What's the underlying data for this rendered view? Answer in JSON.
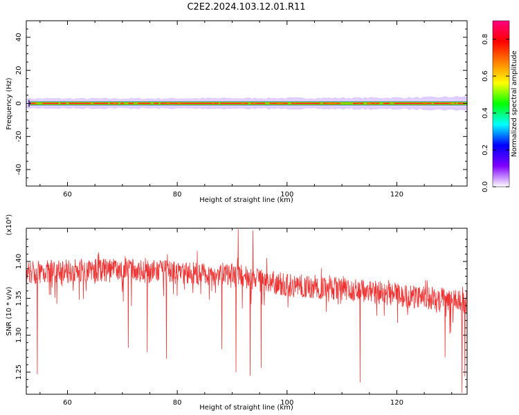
{
  "figure": {
    "title": "C2E2.2024.103.12.01.R11"
  },
  "chart_data": [
    {
      "type": "heatmap",
      "xlabel": "Height of straight line (km)",
      "ylabel": "Frequency (Hz)",
      "xlim": [
        52.5,
        132.8
      ],
      "ylim": [
        -50,
        50
      ],
      "xticks": [
        60,
        80,
        100,
        120
      ],
      "yticks": [
        -40,
        -20,
        0,
        20,
        40
      ],
      "band": {
        "center_frequency": 0,
        "core_halfwidth": [
          0.6,
          0.6,
          0.6,
          0.6,
          0.7,
          0.7
        ],
        "outer_halfwidth": [
          3.0,
          3.0,
          3.2,
          3.4,
          3.6,
          4.2
        ],
        "halfwidth_x": [
          53,
          70,
          90,
          110,
          125,
          132.8
        ]
      },
      "colorbar": {
        "label": "Normalized spectral amplitude",
        "range": [
          0.0,
          0.9
        ],
        "ticks": [
          0.0,
          0.2,
          0.4,
          0.6,
          0.8
        ],
        "colors": [
          "#ffffff",
          "#8000ff",
          "#0000ff",
          "#00ffff",
          "#00ff00",
          "#ffff00",
          "#ff8000",
          "#ff0000",
          "#ff0080"
        ]
      }
    },
    {
      "type": "line",
      "xlabel": "Height of straight line (km)",
      "ylabel": "SNR (10 * v/v)",
      "multiplier_label": "(x10⁴)",
      "xlim": [
        52.5,
        132.8
      ],
      "ylim": [
        1.22,
        1.445
      ],
      "xticks": [
        60,
        80,
        100,
        120
      ],
      "yticks": [
        1.25,
        1.3,
        1.35,
        1.4
      ],
      "line_color": "#ee3333",
      "trend": {
        "x": [
          52.5,
          60,
          70,
          80,
          85,
          90,
          95,
          100,
          110,
          120,
          132.8
        ],
        "y": [
          1.385,
          1.388,
          1.388,
          1.385,
          1.383,
          1.382,
          1.375,
          1.368,
          1.363,
          1.355,
          1.345
        ]
      },
      "spread": 0.016,
      "notable_spikes": [
        {
          "x": 54.5,
          "y": 1.247
        },
        {
          "x": 71.1,
          "y": 1.283
        },
        {
          "x": 74.5,
          "y": 1.277
        },
        {
          "x": 78.0,
          "y": 1.268
        },
        {
          "x": 88.1,
          "y": 1.281
        },
        {
          "x": 90.7,
          "y": 1.25
        },
        {
          "x": 91.1,
          "y": 1.444
        },
        {
          "x": 93.3,
          "y": 1.245
        },
        {
          "x": 93.8,
          "y": 1.442
        },
        {
          "x": 95.3,
          "y": 1.256
        },
        {
          "x": 113.3,
          "y": 1.236
        },
        {
          "x": 128.8,
          "y": 1.27
        },
        {
          "x": 131.9,
          "y": 1.222
        },
        {
          "x": 132.4,
          "y": 1.244
        }
      ]
    }
  ]
}
